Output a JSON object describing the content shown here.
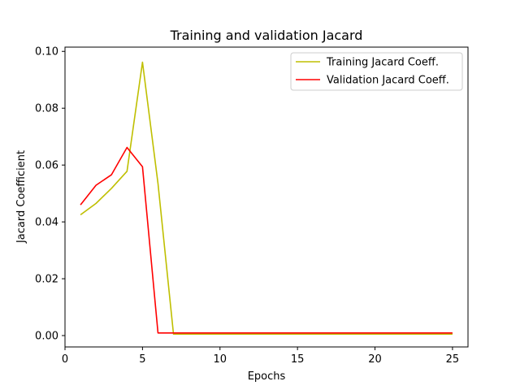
{
  "chart_data": {
    "type": "line",
    "title": "Training and validation Jacard",
    "xlabel": "Epochs",
    "ylabel": "Jacard Coefficient",
    "xlim": [
      0,
      26
    ],
    "ylim": [
      -0.004,
      0.1015
    ],
    "xticks": [
      0,
      5,
      10,
      15,
      20,
      25
    ],
    "yticks": [
      0.0,
      0.02,
      0.04,
      0.06,
      0.08,
      0.1
    ],
    "ytick_labels": [
      "0.00",
      "0.02",
      "0.04",
      "0.06",
      "0.08",
      "0.10"
    ],
    "grid": false,
    "legend_position": "top-right",
    "series": [
      {
        "name": "Training Jacard Coeff.",
        "color": "#bfbf00",
        "x": [
          1,
          2,
          3,
          4,
          5,
          6,
          7,
          8,
          9,
          10,
          11,
          12,
          13,
          14,
          15,
          16,
          17,
          18,
          19,
          20,
          21,
          22,
          23,
          24,
          25
        ],
        "values": [
          0.0425,
          0.0465,
          0.0518,
          0.0578,
          0.0962,
          0.0535,
          0.0005,
          0.0005,
          0.0005,
          0.0005,
          0.0005,
          0.0005,
          0.0005,
          0.0005,
          0.0005,
          0.0005,
          0.0005,
          0.0005,
          0.0005,
          0.0005,
          0.0005,
          0.0005,
          0.0005,
          0.0005,
          0.0005
        ]
      },
      {
        "name": "Validation Jacard Coeff.",
        "color": "#ff0000",
        "x": [
          1,
          2,
          3,
          4,
          5,
          6,
          7,
          8,
          9,
          10,
          11,
          12,
          13,
          14,
          15,
          16,
          17,
          18,
          19,
          20,
          21,
          22,
          23,
          24,
          25
        ],
        "values": [
          0.046,
          0.0529,
          0.0566,
          0.0662,
          0.0594,
          0.0009,
          0.0009,
          0.0009,
          0.0009,
          0.0009,
          0.0009,
          0.0009,
          0.0009,
          0.0009,
          0.0009,
          0.0009,
          0.0009,
          0.0009,
          0.0009,
          0.0009,
          0.0009,
          0.0009,
          0.0009,
          0.0009,
          0.0009
        ]
      }
    ]
  }
}
